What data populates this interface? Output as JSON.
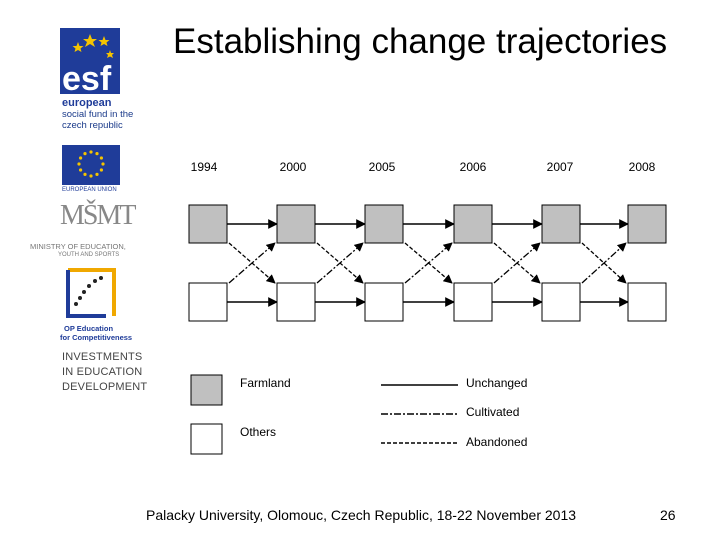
{
  "slide": {
    "title": "Establishing change trajectories",
    "footer": "Palacky University, Olomouc, Czech Republic, 18-22 November 2013",
    "page_number": "26"
  },
  "logos": {
    "esf_mark": "esf",
    "esf_line1": "european",
    "esf_line2": "social fund in the",
    "esf_line3": "czech republic",
    "eu_caption": "EUROPEAN UNION",
    "msmt_mark": "MŠMT",
    "msmt_line1": "MINISTRY OF EDUCATION,",
    "msmt_line2": "YOUTH AND SPORTS",
    "op_line1": "OP Education",
    "op_line2": "for Competitiveness",
    "invest_line1": "INVESTMENTS",
    "invest_line2": "IN EDUCATION",
    "invest_line3": "DEVELOPMENT"
  },
  "diagram": {
    "years": [
      "1994",
      "2000",
      "2005",
      "2006",
      "2007",
      "2008"
    ],
    "row_states": [
      "Farmland",
      "Others"
    ],
    "colors": {
      "farmland": "#c0c0c0",
      "others": "#ffffff",
      "blue": "#1f3c99",
      "gold": "#f5c400"
    }
  },
  "legend": {
    "farmland": "Farmland",
    "others": "Others",
    "unchanged": "Unchanged",
    "cultivated": "Cultivated",
    "abandoned": "Abandoned"
  }
}
